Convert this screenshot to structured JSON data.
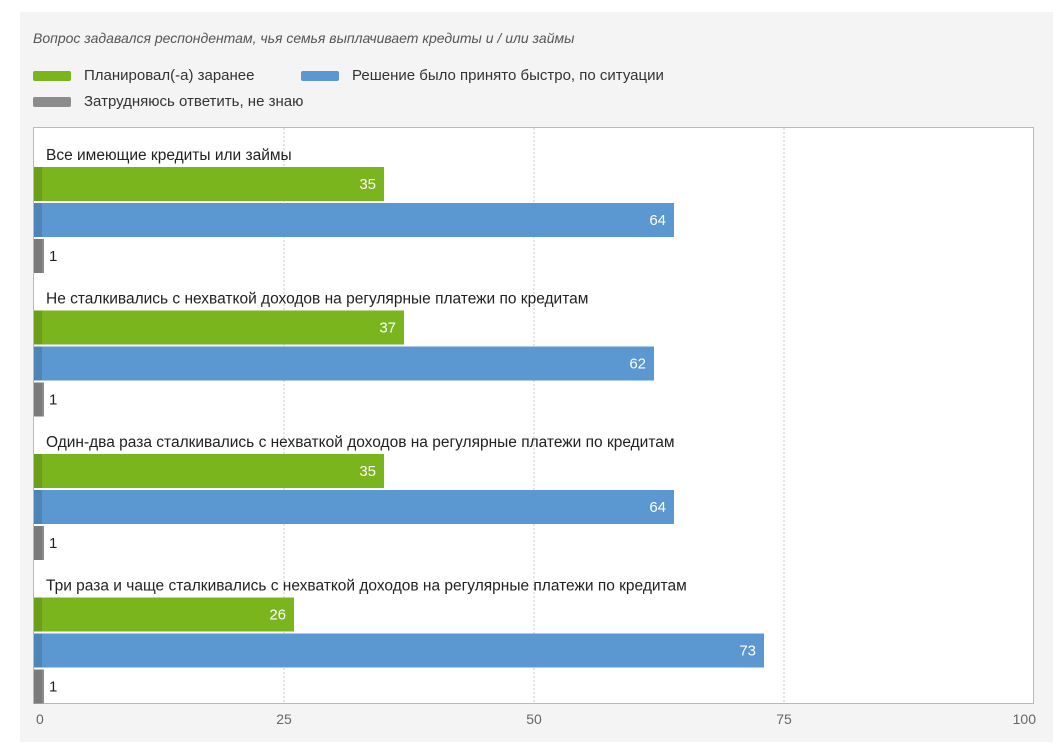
{
  "subtitle": "Вопрос задавался респондентам, чья семья выплачивает кредиты и / или займы",
  "colors": {
    "planned": "#7ab51d",
    "quick": "#5b97d0",
    "unknown": "#8c8c8c"
  },
  "legend": [
    {
      "label": "Планировал(-а) заранее",
      "color": "#7ab51d"
    },
    {
      "label": "Решение было принято быстро, по ситуации",
      "color": "#5b97d0"
    },
    {
      "label": "Затрудняюсь ответить, не знаю",
      "color": "#8c8c8c"
    }
  ],
  "chart_data": {
    "type": "bar",
    "orientation": "horizontal",
    "categories": [
      "Все имеющие кредиты или займы",
      "Не сталкивались с нехваткой доходов на регулярные платежи по кредитам",
      "Один-два раза сталкивались с нехваткой доходов на регулярные платежи по кредитам",
      "Три раза и чаще сталкивались с нехваткой доходов на регулярные платежи по кредитам"
    ],
    "series": [
      {
        "name": "Планировал(-а) заранее",
        "values": [
          35,
          37,
          35,
          26
        ]
      },
      {
        "name": "Решение было принято быстро, по ситуации",
        "values": [
          64,
          62,
          64,
          73
        ]
      },
      {
        "name": "Затрудняюсь ответить, не знаю",
        "values": [
          1,
          1,
          1,
          1
        ]
      }
    ],
    "xlim": [
      0,
      100
    ],
    "xticks": [
      0,
      25,
      50,
      75,
      100
    ],
    "grid": true,
    "legend_position": "top-left"
  }
}
